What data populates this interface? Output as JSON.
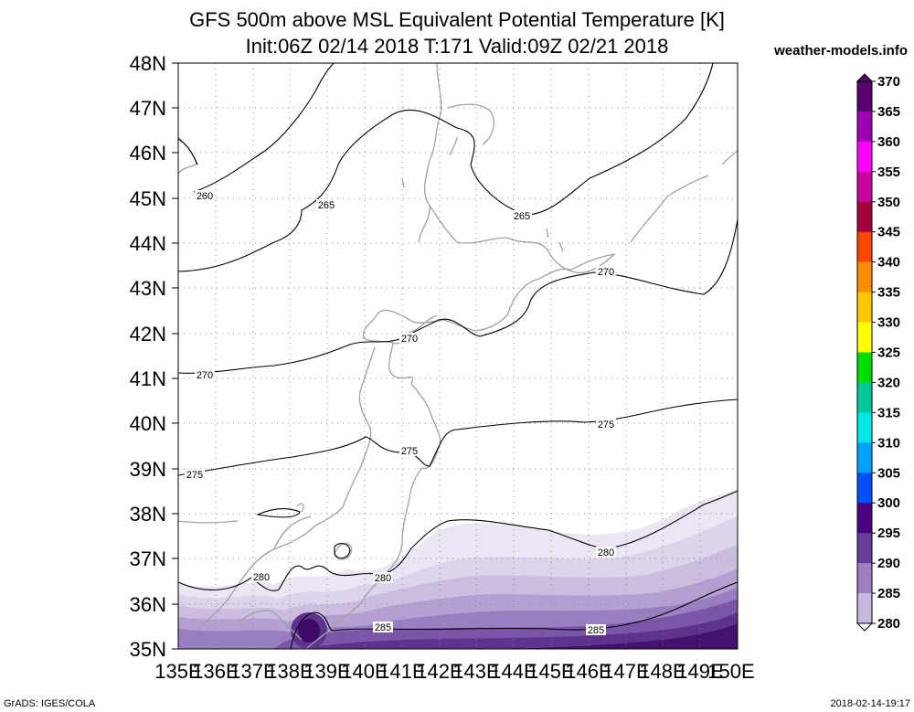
{
  "header": {
    "title_line1": "GFS 500m above MSL Equivalent Potential Temperature [K]",
    "title_line2": "Init:06Z 02/14 2018 T:171 Valid:09Z 02/21 2018",
    "site": "weather-models.info"
  },
  "axes": {
    "lat_labels": [
      "48N",
      "47N",
      "46N",
      "45N",
      "44N",
      "43N",
      "42N",
      "41N",
      "40N",
      "39N",
      "38N",
      "37N",
      "36N",
      "35N"
    ],
    "lon_labels": [
      "135E",
      "136E",
      "137E",
      "138E",
      "139E",
      "140E",
      "141E",
      "142E",
      "143E",
      "144E",
      "145E",
      "146E",
      "147E",
      "148E",
      "149E",
      "150E"
    ]
  },
  "contour_labels": [
    {
      "id": "c260",
      "text": "260"
    },
    {
      "id": "c265a",
      "text": "265"
    },
    {
      "id": "c265b",
      "text": "265"
    },
    {
      "id": "c270a",
      "text": "270"
    },
    {
      "id": "c270b",
      "text": "270"
    },
    {
      "id": "c270c",
      "text": "270"
    },
    {
      "id": "c275a",
      "text": "275"
    },
    {
      "id": "c275b",
      "text": "275"
    },
    {
      "id": "c275c",
      "text": "275"
    },
    {
      "id": "c280a",
      "text": "280"
    },
    {
      "id": "c280b",
      "text": "280"
    },
    {
      "id": "c280c",
      "text": "280"
    },
    {
      "id": "c285a",
      "text": "285"
    },
    {
      "id": "c285b",
      "text": "285"
    }
  ],
  "colorbar": {
    "labels": [
      "370",
      "365",
      "360",
      "355",
      "350",
      "345",
      "340",
      "335",
      "330",
      "325",
      "320",
      "315",
      "310",
      "305",
      "300",
      "295",
      "290",
      "285",
      "280"
    ],
    "colors": [
      "#5a006e",
      "#a000b4",
      "#ff00ff",
      "#c800a0",
      "#a0003c",
      "#dc0000",
      "#ff4600",
      "#ff8c00",
      "#ffc800",
      "#ffff00",
      "#a0e632",
      "#00dc00",
      "#00c896",
      "#00e6e6",
      "#00a0ff",
      "#0050ff",
      "#0000c8",
      "#4b0082",
      "#6a3d9a",
      "#9e80c0",
      "#c8b8e0",
      "#e6e0f2"
    ]
  },
  "footer": {
    "left": "GrADS: IGES/COLA",
    "right": "2018-02-14-19:17"
  }
}
